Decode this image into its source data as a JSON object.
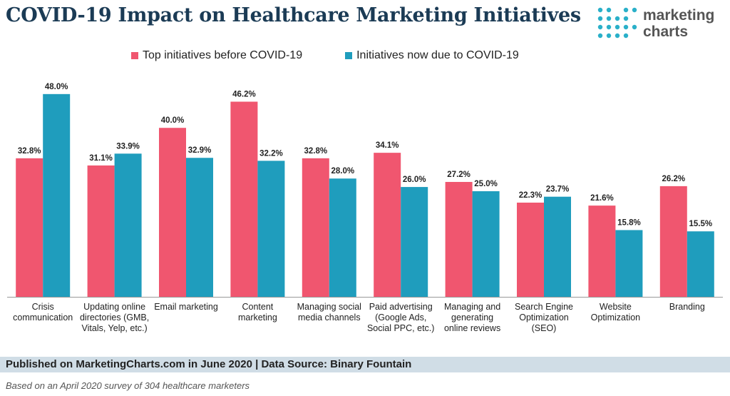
{
  "title": "COVID-19 Impact on Healthcare Marketing Initiatives",
  "logo": {
    "line1": "marketing",
    "line2": "charts"
  },
  "legend": [
    {
      "label": "Top initiatives before COVID-19",
      "color": "#f0566f"
    },
    {
      "label": "Initiatives now due to COVID-19",
      "color": "#1f9dbd"
    }
  ],
  "chart_data": {
    "type": "bar",
    "title": "COVID-19 Impact on Healthcare Marketing Initiatives",
    "categories": [
      [
        "Crisis",
        "communication"
      ],
      [
        "Updating online",
        "directories (GMB,",
        "Vitals, Yelp, etc.)"
      ],
      [
        "Email marketing"
      ],
      [
        "Content",
        "marketing"
      ],
      [
        "Managing social",
        "media channels"
      ],
      [
        "Paid advertising",
        "(Google Ads,",
        "Social PPC, etc.)"
      ],
      [
        "Managing and",
        "generating",
        "online reviews"
      ],
      [
        "Search Engine",
        "Optimization",
        "(SEO)"
      ],
      [
        "Website",
        "Optimization"
      ],
      [
        "Branding"
      ]
    ],
    "series": [
      {
        "name": "Top initiatives before COVID-19",
        "color": "#f0566f",
        "values": [
          32.8,
          31.1,
          40.0,
          46.2,
          32.8,
          34.1,
          27.2,
          22.3,
          21.6,
          26.2
        ]
      },
      {
        "name": "Initiatives now due to COVID-19",
        "color": "#1f9dbd",
        "values": [
          48.0,
          33.9,
          32.9,
          32.2,
          28.0,
          26.0,
          25.0,
          23.7,
          15.8,
          15.5
        ]
      }
    ],
    "ylim": [
      0,
      50
    ],
    "value_suffix": "%",
    "grid": false,
    "legend_position": "top"
  },
  "footer": {
    "source": "Published on MarketingCharts.com in June 2020 | Data Source: Binary Fountain",
    "note": "Based on an April 2020 survey of 304 healthcare marketers"
  }
}
